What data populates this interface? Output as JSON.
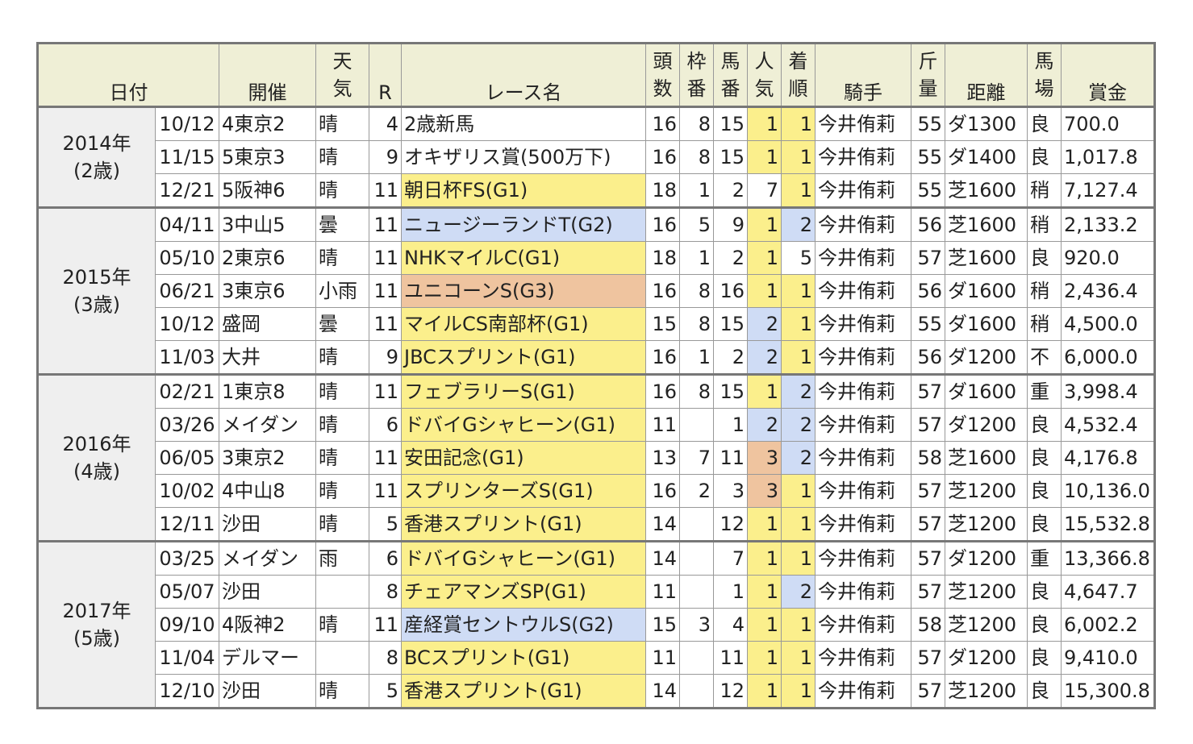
{
  "headers": {
    "date": "日付",
    "venue": "開催",
    "weather": "天気",
    "race_no": "R",
    "race_name": "レース名",
    "field_size": "頭数",
    "gate": "枠番",
    "horse_no": "馬番",
    "popularity": "人気",
    "finish": "着順",
    "jockey": "騎手",
    "weight": "斤量",
    "distance": "距離",
    "track": "馬場",
    "prize": "賞金"
  },
  "years": [
    {
      "year": "2014年",
      "age": "(2歳)",
      "races": [
        {
          "date": "10/12",
          "venue": "4東京2",
          "weather": "晴",
          "r": "4",
          "name": "2歳新馬",
          "grade": "",
          "heads": "16",
          "gate": "8",
          "no": "15",
          "pop": "1",
          "finish": "1",
          "jockey": "今井侑莉",
          "weight": "55",
          "dist": "ダ1300",
          "track": "良",
          "prize": "700.0"
        },
        {
          "date": "11/15",
          "venue": "5東京3",
          "weather": "晴",
          "r": "9",
          "name": "オキザリス賞(500万下)",
          "grade": "",
          "heads": "16",
          "gate": "8",
          "no": "15",
          "pop": "1",
          "finish": "1",
          "jockey": "今井侑莉",
          "weight": "55",
          "dist": "ダ1400",
          "track": "良",
          "prize": "1,017.8"
        },
        {
          "date": "12/21",
          "venue": "5阪神6",
          "weather": "晴",
          "r": "11",
          "name": "朝日杯FS(G1)",
          "grade": "g1",
          "heads": "18",
          "gate": "1",
          "no": "2",
          "pop": "7",
          "finish": "1",
          "jockey": "今井侑莉",
          "weight": "55",
          "dist": "芝1600",
          "track": "稍",
          "prize": "7,127.4"
        }
      ]
    },
    {
      "year": "2015年",
      "age": "(3歳)",
      "races": [
        {
          "date": "04/11",
          "venue": "3中山5",
          "weather": "曇",
          "r": "11",
          "name": "ニュージーランドT(G2)",
          "grade": "g2",
          "heads": "16",
          "gate": "5",
          "no": "9",
          "pop": "1",
          "finish": "2",
          "jockey": "今井侑莉",
          "weight": "56",
          "dist": "芝1600",
          "track": "稍",
          "prize": "2,133.2"
        },
        {
          "date": "05/10",
          "venue": "2東京6",
          "weather": "晴",
          "r": "11",
          "name": "NHKマイルC(G1)",
          "grade": "g1",
          "heads": "18",
          "gate": "1",
          "no": "2",
          "pop": "1",
          "finish": "5",
          "jockey": "今井侑莉",
          "weight": "57",
          "dist": "芝1600",
          "track": "良",
          "prize": "920.0"
        },
        {
          "date": "06/21",
          "venue": "3東京6",
          "weather": "小雨",
          "r": "11",
          "name": "ユニコーンS(G3)",
          "grade": "g3",
          "heads": "16",
          "gate": "8",
          "no": "16",
          "pop": "1",
          "finish": "1",
          "jockey": "今井侑莉",
          "weight": "56",
          "dist": "ダ1600",
          "track": "稍",
          "prize": "2,436.4"
        },
        {
          "date": "10/12",
          "venue": "盛岡",
          "weather": "曇",
          "r": "11",
          "name": "マイルCS南部杯(G1)",
          "grade": "g1",
          "heads": "15",
          "gate": "8",
          "no": "15",
          "pop": "2",
          "finish": "1",
          "jockey": "今井侑莉",
          "weight": "55",
          "dist": "ダ1600",
          "track": "稍",
          "prize": "4,500.0"
        },
        {
          "date": "11/03",
          "venue": "大井",
          "weather": "晴",
          "r": "9",
          "name": "JBCスプリント(G1)",
          "grade": "g1",
          "heads": "16",
          "gate": "1",
          "no": "2",
          "pop": "2",
          "finish": "1",
          "jockey": "今井侑莉",
          "weight": "56",
          "dist": "ダ1200",
          "track": "不",
          "prize": "6,000.0"
        }
      ]
    },
    {
      "year": "2016年",
      "age": "(4歳)",
      "races": [
        {
          "date": "02/21",
          "venue": "1東京8",
          "weather": "晴",
          "r": "11",
          "name": "フェブラリーS(G1)",
          "grade": "g1",
          "heads": "16",
          "gate": "8",
          "no": "15",
          "pop": "1",
          "finish": "2",
          "jockey": "今井侑莉",
          "weight": "57",
          "dist": "ダ1600",
          "track": "重",
          "prize": "3,998.4"
        },
        {
          "date": "03/26",
          "venue": "メイダン",
          "weather": "晴",
          "r": "6",
          "name": "ドバイGシャヒーン(G1)",
          "grade": "g1",
          "heads": "11",
          "gate": "",
          "no": "1",
          "pop": "2",
          "finish": "2",
          "jockey": "今井侑莉",
          "weight": "57",
          "dist": "ダ1200",
          "track": "良",
          "prize": "4,532.4"
        },
        {
          "date": "06/05",
          "venue": "3東京2",
          "weather": "晴",
          "r": "11",
          "name": "安田記念(G1)",
          "grade": "g1",
          "heads": "13",
          "gate": "7",
          "no": "11",
          "pop": "3",
          "finish": "2",
          "jockey": "今井侑莉",
          "weight": "58",
          "dist": "芝1600",
          "track": "良",
          "prize": "4,176.8"
        },
        {
          "date": "10/02",
          "venue": "4中山8",
          "weather": "晴",
          "r": "11",
          "name": "スプリンターズS(G1)",
          "grade": "g1",
          "heads": "16",
          "gate": "2",
          "no": "3",
          "pop": "3",
          "finish": "1",
          "jockey": "今井侑莉",
          "weight": "57",
          "dist": "芝1200",
          "track": "良",
          "prize": "10,136.0"
        },
        {
          "date": "12/11",
          "venue": "沙田",
          "weather": "晴",
          "r": "5",
          "name": "香港スプリント(G1)",
          "grade": "g1",
          "heads": "14",
          "gate": "",
          "no": "12",
          "pop": "1",
          "finish": "1",
          "jockey": "今井侑莉",
          "weight": "57",
          "dist": "芝1200",
          "track": "良",
          "prize": "15,532.8"
        }
      ]
    },
    {
      "year": "2017年",
      "age": "(5歳)",
      "races": [
        {
          "date": "03/25",
          "venue": "メイダン",
          "weather": "雨",
          "r": "6",
          "name": "ドバイGシャヒーン(G1)",
          "grade": "g1",
          "heads": "14",
          "gate": "",
          "no": "7",
          "pop": "1",
          "finish": "1",
          "jockey": "今井侑莉",
          "weight": "57",
          "dist": "ダ1200",
          "track": "重",
          "prize": "13,366.8"
        },
        {
          "date": "05/07",
          "venue": "沙田",
          "weather": "",
          "r": "8",
          "name": "チェアマンズSP(G1)",
          "grade": "g1",
          "heads": "11",
          "gate": "",
          "no": "1",
          "pop": "1",
          "finish": "2",
          "jockey": "今井侑莉",
          "weight": "57",
          "dist": "芝1200",
          "track": "良",
          "prize": "4,647.7"
        },
        {
          "date": "09/10",
          "venue": "4阪神2",
          "weather": "晴",
          "r": "11",
          "name": "産経賞セントウルS(G2)",
          "grade": "g2",
          "heads": "15",
          "gate": "3",
          "no": "4",
          "pop": "1",
          "finish": "1",
          "jockey": "今井侑莉",
          "weight": "58",
          "dist": "芝1200",
          "track": "良",
          "prize": "6,002.2"
        },
        {
          "date": "11/04",
          "venue": "デルマー",
          "weather": "",
          "r": "8",
          "name": "BCスプリント(G1)",
          "grade": "g1",
          "heads": "11",
          "gate": "",
          "no": "11",
          "pop": "1",
          "finish": "1",
          "jockey": "今井侑莉",
          "weight": "57",
          "dist": "ダ1200",
          "track": "良",
          "prize": "9,410.0"
        },
        {
          "date": "12/10",
          "venue": "沙田",
          "weather": "晴",
          "r": "5",
          "name": "香港スプリント(G1)",
          "grade": "g1",
          "heads": "14",
          "gate": "",
          "no": "12",
          "pop": "1",
          "finish": "1",
          "jockey": "今井侑莉",
          "weight": "57",
          "dist": "芝1200",
          "track": "良",
          "prize": "15,300.8"
        }
      ]
    }
  ],
  "colors": {
    "header_bg": "#efefd6",
    "year_bg": "#efefef",
    "g1": "#fbef8c",
    "g2": "#cfdcf5",
    "g3": "#efc49f",
    "border": "#777777"
  }
}
